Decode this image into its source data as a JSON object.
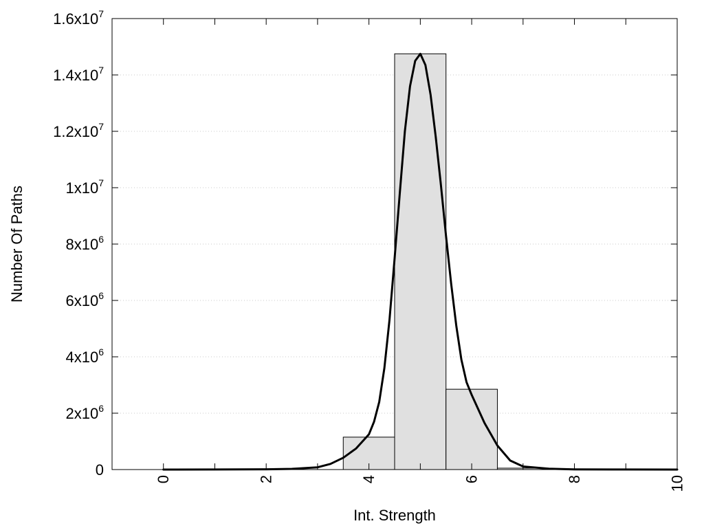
{
  "chart_data": {
    "type": "bar",
    "title": "",
    "xlabel": "Int. Strength",
    "ylabel": "Number Of Paths",
    "xlim": [
      -1,
      10
    ],
    "ylim": [
      0,
      16000000
    ],
    "grid": true,
    "x_ticks": [
      {
        "value": 0,
        "label": "0"
      },
      {
        "value": 2,
        "label": "2"
      },
      {
        "value": 4,
        "label": "4"
      },
      {
        "value": 6,
        "label": "6"
      },
      {
        "value": 8,
        "label": "8"
      },
      {
        "value": 10,
        "label": "10"
      }
    ],
    "y_ticks": [
      {
        "value": 0,
        "base": "0",
        "exp": ""
      },
      {
        "value": 2000000,
        "base": "2x10",
        "exp": "6"
      },
      {
        "value": 4000000,
        "base": "4x10",
        "exp": "6"
      },
      {
        "value": 6000000,
        "base": "6x10",
        "exp": "6"
      },
      {
        "value": 8000000,
        "base": "8x10",
        "exp": "6"
      },
      {
        "value": 10000000,
        "base": "1x10",
        "exp": "7"
      },
      {
        "value": 12000000,
        "base": "1.2x10",
        "exp": "7"
      },
      {
        "value": 14000000,
        "base": "1.4x10",
        "exp": "7"
      },
      {
        "value": 16000000,
        "base": "1.6x10",
        "exp": "7"
      }
    ],
    "bars": {
      "width": 1,
      "x": [
        4,
        5,
        6,
        7
      ],
      "values": [
        1150000,
        14750000,
        2850000,
        50000
      ]
    },
    "curve": {
      "x": [
        0,
        1,
        2,
        2.5,
        3,
        3.25,
        3.5,
        3.75,
        4,
        4.1,
        4.2,
        4.3,
        4.4,
        4.5,
        4.6,
        4.7,
        4.8,
        4.9,
        5,
        5.1,
        5.2,
        5.3,
        5.4,
        5.5,
        5.6,
        5.7,
        5.8,
        5.9,
        6,
        6.25,
        6.5,
        6.75,
        7,
        7.5,
        8,
        9,
        10
      ],
      "y": [
        0,
        2000,
        10000,
        25000,
        80000,
        200000,
        420000,
        750000,
        1250000,
        1700000,
        2400000,
        3600000,
        5300000,
        7500000,
        9800000,
        12000000,
        13600000,
        14500000,
        14750000,
        14350000,
        13300000,
        11800000,
        10100000,
        8300000,
        6600000,
        5100000,
        3900000,
        3100000,
        2650000,
        1650000,
        850000,
        320000,
        110000,
        30000,
        8000,
        2000,
        0
      ]
    }
  }
}
